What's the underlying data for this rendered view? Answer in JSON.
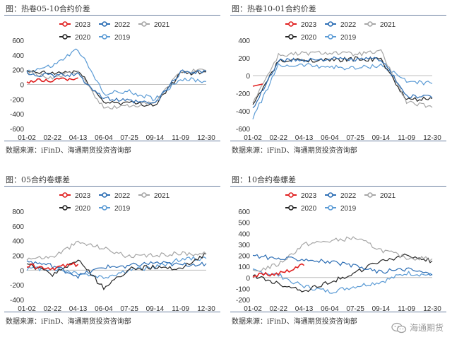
{
  "panels": [
    {
      "title": "图：热卷05-10合约价差",
      "source": "数据来源：iFinD、海通期货投资咨询部"
    },
    {
      "title": "图：热卷10-01合约价差",
      "source": "数据来源：iFinD、海通期货投资咨询部"
    },
    {
      "title": "图：05合约卷螺差",
      "source": "数据来源：iFinD、海通期货投资咨询部"
    },
    {
      "title": "图：10合约卷螺差",
      "source": "数据来源：iFinD、海通期货投资咨询部"
    }
  ],
  "watermark": {
    "text": "海通期货",
    "icon": "wechat-icon"
  },
  "colors": {
    "2023": "#e02020",
    "2022": "#2e6fb5",
    "2021": "#a6a6a6",
    "2020": "#262626",
    "2019": "#5b9bd5"
  },
  "chart_data": [
    {
      "type": "line",
      "title": "热卷05-10合约价差",
      "x": [
        "01-02",
        "02-22",
        "04-13",
        "06-04",
        "07-25",
        "09-14",
        "11-09",
        "12-30"
      ],
      "ylim": [
        -600,
        600
      ],
      "yticks": [
        600,
        400,
        200,
        0,
        -200,
        -400,
        -600
      ],
      "grid": false,
      "legend": "top",
      "series": [
        {
          "name": "2023",
          "values": [
            40,
            60,
            90,
            null,
            null,
            null,
            null,
            null
          ]
        },
        {
          "name": "2022",
          "values": [
            150,
            120,
            130,
            -190,
            -230,
            -260,
            170,
            180
          ]
        },
        {
          "name": "2021",
          "values": [
            160,
            90,
            170,
            -320,
            -290,
            -250,
            180,
            190
          ]
        },
        {
          "name": "2020",
          "values": [
            170,
            150,
            180,
            -240,
            -250,
            -280,
            150,
            170
          ]
        },
        {
          "name": "2019",
          "values": [
            180,
            250,
            480,
            -120,
            -100,
            -200,
            80,
            40
          ]
        }
      ]
    },
    {
      "type": "line",
      "title": "热卷10-01合约价差",
      "x": [
        "01-02",
        "02-22",
        "04-13",
        "06-04",
        "07-25",
        "09-14",
        "11-09",
        "12-30"
      ],
      "ylim": [
        -600,
        400
      ],
      "yticks": [
        400,
        200,
        0,
        -200,
        -400,
        -600
      ],
      "grid": false,
      "legend": "top",
      "series": [
        {
          "name": "2023",
          "values": [
            -120,
            null,
            null,
            null,
            null,
            null,
            null,
            null
          ]
        },
        {
          "name": "2022",
          "values": [
            -380,
            170,
            180,
            190,
            180,
            190,
            -230,
            -250
          ]
        },
        {
          "name": "2021",
          "values": [
            -300,
            230,
            250,
            260,
            240,
            270,
            -300,
            -360
          ]
        },
        {
          "name": "2020",
          "values": [
            -340,
            160,
            180,
            170,
            190,
            180,
            -280,
            -260
          ]
        },
        {
          "name": "2019",
          "values": [
            -480,
            110,
            120,
            100,
            80,
            120,
            -60,
            -90
          ]
        }
      ]
    },
    {
      "type": "line",
      "title": "05合约卷螺差",
      "x": [
        "01-02",
        "02-22",
        "04-13",
        "06-04",
        "07-25",
        "09-14",
        "11-09",
        "12-30"
      ],
      "ylim": [
        -400,
        800
      ],
      "yticks": [
        800,
        600,
        400,
        200,
        0,
        -200,
        -400
      ],
      "grid": false,
      "legend": "top",
      "series": [
        {
          "name": "2023",
          "values": [
            60,
            30,
            80,
            null,
            null,
            null,
            null,
            null
          ]
        },
        {
          "name": "2022",
          "values": [
            120,
            60,
            -80,
            40,
            60,
            100,
            70,
            90
          ]
        },
        {
          "name": "2021",
          "values": [
            160,
            180,
            380,
            300,
            180,
            200,
            230,
            220
          ]
        },
        {
          "name": "2020",
          "values": [
            80,
            -60,
            140,
            -250,
            20,
            40,
            20,
            220
          ]
        },
        {
          "name": "2019",
          "values": [
            20,
            20,
            -40,
            -100,
            0,
            40,
            150,
            160
          ]
        }
      ]
    },
    {
      "type": "line",
      "title": "10合约卷螺差",
      "x": [
        "01-02",
        "02-22",
        "04-13",
        "06-04",
        "07-25",
        "09-14",
        "11-09",
        "12-30"
      ],
      "ylim": [
        -200,
        600
      ],
      "yticks": [
        600,
        500,
        400,
        300,
        200,
        100,
        0,
        -100,
        -200
      ],
      "grid": false,
      "legend": "top",
      "series": [
        {
          "name": "2023",
          "values": [
            20,
            40,
            110,
            null,
            null,
            null,
            null,
            null
          ]
        },
        {
          "name": "2022",
          "values": [
            200,
            170,
            170,
            140,
            100,
            50,
            80,
            30
          ]
        },
        {
          "name": "2021",
          "values": [
            50,
            120,
            300,
            330,
            360,
            250,
            180,
            170
          ]
        },
        {
          "name": "2020",
          "values": [
            20,
            -60,
            -120,
            -40,
            40,
            150,
            200,
            150
          ]
        },
        {
          "name": "2019",
          "values": [
            60,
            20,
            -80,
            -130,
            -80,
            -40,
            40,
            20
          ]
        }
      ]
    }
  ]
}
